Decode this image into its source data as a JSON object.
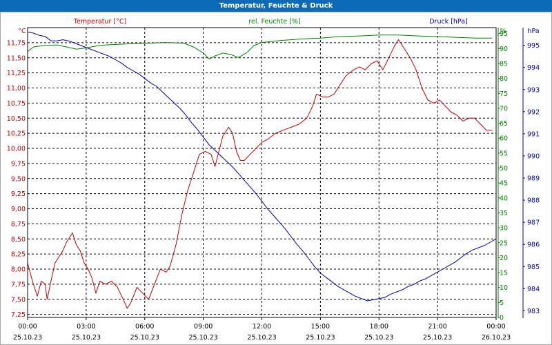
{
  "title": "Temperatur, Feuchte & Druck",
  "colors": {
    "temperature": "#c00000",
    "humidity": "#008000",
    "pressure": "#0000b0",
    "titlebar": "#0d6ab8"
  },
  "chart_data": {
    "type": "line",
    "legend": {
      "temperature": "Temperatur [°C]",
      "humidity": "rel. Feuchte [%]",
      "pressure": "Druck [hPa]"
    },
    "axes": {
      "left": {
        "unit": "°C",
        "ticks": [
          "11,75",
          "11,50",
          "11,25",
          "11,00",
          "10,75",
          "10,50",
          "10,25",
          "10,00",
          "9,75",
          "9,50",
          "9,25",
          "9,00",
          "8,75",
          "8,50",
          "8,25",
          "8,00",
          "7,75",
          "7,50",
          "7,25"
        ],
        "range": [
          7.2,
          12.0
        ]
      },
      "middle": {
        "unit": "%",
        "ticks": [
          "95",
          "90",
          "85",
          "80",
          "75",
          "70",
          "65",
          "60",
          "55",
          "50",
          "45",
          "40",
          "35",
          "30",
          "25",
          "20",
          "15",
          "10",
          "5",
          "0"
        ],
        "range": [
          0,
          97
        ]
      },
      "right": {
        "unit": "hPa",
        "ticks": [
          "995",
          "994",
          "993",
          "992",
          "991",
          "990",
          "989",
          "988",
          "987",
          "986",
          "985",
          "984",
          "983"
        ],
        "range": [
          982.7,
          995.8
        ]
      }
    },
    "x_ticks": [
      {
        "time": "00:00",
        "date": "25.10.23"
      },
      {
        "time": "03:00",
        "date": "25.10.23"
      },
      {
        "time": "06:00",
        "date": "25.10.23"
      },
      {
        "time": "09:00",
        "date": "25.10.23"
      },
      {
        "time": "12:00",
        "date": "25.10.23"
      },
      {
        "time": "15:00",
        "date": "25.10.23"
      },
      {
        "time": "18:00",
        "date": "25.10.23"
      },
      {
        "time": "21:00",
        "date": "25.10.23"
      },
      {
        "time": "00:00",
        "date": "26.10.23"
      }
    ],
    "x_range_hours": [
      0,
      24
    ],
    "series": [
      {
        "name": "Temperatur",
        "axis": "left",
        "color": "#c00000",
        "points": [
          [
            0,
            8.1
          ],
          [
            0.25,
            7.8
          ],
          [
            0.5,
            7.55
          ],
          [
            0.7,
            7.8
          ],
          [
            0.9,
            7.75
          ],
          [
            1.0,
            7.5
          ],
          [
            1.2,
            7.8
          ],
          [
            1.4,
            8.1
          ],
          [
            1.6,
            8.2
          ],
          [
            1.8,
            8.3
          ],
          [
            2.0,
            8.45
          ],
          [
            2.3,
            8.6
          ],
          [
            2.5,
            8.4
          ],
          [
            2.7,
            8.3
          ],
          [
            2.9,
            8.1
          ],
          [
            3.1,
            8.0
          ],
          [
            3.3,
            7.85
          ],
          [
            3.5,
            7.6
          ],
          [
            3.7,
            7.8
          ],
          [
            4.0,
            7.75
          ],
          [
            4.3,
            7.8
          ],
          [
            4.6,
            7.7
          ],
          [
            4.9,
            7.5
          ],
          [
            5.1,
            7.35
          ],
          [
            5.3,
            7.45
          ],
          [
            5.6,
            7.7
          ],
          [
            5.9,
            7.6
          ],
          [
            6.2,
            7.5
          ],
          [
            6.5,
            7.75
          ],
          [
            6.8,
            8.0
          ],
          [
            7.1,
            7.95
          ],
          [
            7.3,
            8.05
          ],
          [
            7.6,
            8.4
          ],
          [
            7.9,
            8.9
          ],
          [
            8.2,
            9.3
          ],
          [
            8.5,
            9.6
          ],
          [
            8.8,
            9.9
          ],
          [
            9.1,
            9.95
          ],
          [
            9.4,
            9.9
          ],
          [
            9.6,
            9.7
          ],
          [
            9.8,
            9.95
          ],
          [
            10.0,
            10.2
          ],
          [
            10.3,
            10.35
          ],
          [
            10.5,
            10.25
          ],
          [
            10.7,
            9.95
          ],
          [
            10.9,
            9.8
          ],
          [
            11.1,
            9.8
          ],
          [
            11.4,
            9.9
          ],
          [
            11.7,
            10.0
          ],
          [
            12.0,
            10.1
          ],
          [
            12.3,
            10.15
          ],
          [
            12.7,
            10.25
          ],
          [
            13.1,
            10.3
          ],
          [
            13.5,
            10.35
          ],
          [
            13.9,
            10.4
          ],
          [
            14.3,
            10.5
          ],
          [
            14.6,
            10.7
          ],
          [
            14.8,
            10.9
          ],
          [
            15.1,
            10.85
          ],
          [
            15.4,
            10.85
          ],
          [
            15.7,
            10.9
          ],
          [
            16.0,
            11.05
          ],
          [
            16.3,
            11.2
          ],
          [
            16.7,
            11.3
          ],
          [
            17.0,
            11.35
          ],
          [
            17.3,
            11.3
          ],
          [
            17.6,
            11.4
          ],
          [
            17.9,
            11.45
          ],
          [
            18.2,
            11.3
          ],
          [
            18.5,
            11.5
          ],
          [
            18.8,
            11.7
          ],
          [
            19.0,
            11.8
          ],
          [
            19.3,
            11.65
          ],
          [
            19.6,
            11.5
          ],
          [
            19.9,
            11.3
          ],
          [
            20.2,
            11.0
          ],
          [
            20.5,
            10.8
          ],
          [
            20.8,
            10.75
          ],
          [
            21.1,
            10.8
          ],
          [
            21.4,
            10.7
          ],
          [
            21.7,
            10.6
          ],
          [
            22.0,
            10.55
          ],
          [
            22.3,
            10.45
          ],
          [
            22.6,
            10.5
          ],
          [
            22.9,
            10.5
          ],
          [
            23.2,
            10.4
          ],
          [
            23.5,
            10.3
          ],
          [
            23.8,
            10.3
          ]
        ]
      },
      {
        "name": "rel. Feuchte",
        "axis": "middle",
        "color": "#008000",
        "points": [
          [
            0,
            89
          ],
          [
            0.3,
            90.5
          ],
          [
            0.8,
            91
          ],
          [
            1.5,
            91.2
          ],
          [
            2.0,
            90.5
          ],
          [
            2.5,
            89.8
          ],
          [
            3.0,
            90.2
          ],
          [
            3.5,
            90.8
          ],
          [
            4.0,
            91.2
          ],
          [
            5.0,
            91.5
          ],
          [
            6.0,
            91.7
          ],
          [
            7.0,
            92
          ],
          [
            8.0,
            91.8
          ],
          [
            8.5,
            90.5
          ],
          [
            9.0,
            88.5
          ],
          [
            9.3,
            86.5
          ],
          [
            9.6,
            87.5
          ],
          [
            10.0,
            88.5
          ],
          [
            10.4,
            88
          ],
          [
            10.8,
            87
          ],
          [
            11.2,
            88.5
          ],
          [
            11.6,
            91
          ],
          [
            12.0,
            92
          ],
          [
            13.0,
            92.7
          ],
          [
            14.0,
            93.2
          ],
          [
            15.0,
            93.5
          ],
          [
            16.0,
            94
          ],
          [
            17.0,
            94.2
          ],
          [
            18.0,
            94.5
          ],
          [
            19.0,
            94.5
          ],
          [
            20.0,
            94.2
          ],
          [
            21.0,
            94
          ],
          [
            22.0,
            93.7
          ],
          [
            23.0,
            93.5
          ],
          [
            23.8,
            93.5
          ]
        ]
      },
      {
        "name": "Druck",
        "axis": "right",
        "color": "#0000b0",
        "points": [
          [
            0,
            995.6
          ],
          [
            0.3,
            995.55
          ],
          [
            0.6,
            995.45
          ],
          [
            0.9,
            995.4
          ],
          [
            1.2,
            995.2
          ],
          [
            1.5,
            995.2
          ],
          [
            1.8,
            995.25
          ],
          [
            2.1,
            995.2
          ],
          [
            2.4,
            995.1
          ],
          [
            2.7,
            995.0
          ],
          [
            3.0,
            994.9
          ],
          [
            3.3,
            994.8
          ],
          [
            3.6,
            994.7
          ],
          [
            3.9,
            994.6
          ],
          [
            4.2,
            994.5
          ],
          [
            4.5,
            994.35
          ],
          [
            4.8,
            994.2
          ],
          [
            5.1,
            994.0
          ],
          [
            5.4,
            993.85
          ],
          [
            5.7,
            993.7
          ],
          [
            6.0,
            993.5
          ],
          [
            6.3,
            993.3
          ],
          [
            6.6,
            993.15
          ],
          [
            6.9,
            992.9
          ],
          [
            7.2,
            992.65
          ],
          [
            7.5,
            992.4
          ],
          [
            7.8,
            992.15
          ],
          [
            8.1,
            991.85
          ],
          [
            8.4,
            991.5
          ],
          [
            8.7,
            991.2
          ],
          [
            9.0,
            990.85
          ],
          [
            9.3,
            990.5
          ],
          [
            9.6,
            990.25
          ],
          [
            9.9,
            990.0
          ],
          [
            10.2,
            989.75
          ],
          [
            10.5,
            989.5
          ],
          [
            10.8,
            989.2
          ],
          [
            11.1,
            988.9
          ],
          [
            11.4,
            988.6
          ],
          [
            11.7,
            988.3
          ],
          [
            12.0,
            987.95
          ],
          [
            12.3,
            987.6
          ],
          [
            12.6,
            987.3
          ],
          [
            12.9,
            987.0
          ],
          [
            13.2,
            986.7
          ],
          [
            13.5,
            986.35
          ],
          [
            13.8,
            986.0
          ],
          [
            14.1,
            985.7
          ],
          [
            14.4,
            985.35
          ],
          [
            14.7,
            985.0
          ],
          [
            15.0,
            984.7
          ],
          [
            15.3,
            984.5
          ],
          [
            15.6,
            984.3
          ],
          [
            15.9,
            984.1
          ],
          [
            16.2,
            983.95
          ],
          [
            16.5,
            983.8
          ],
          [
            16.8,
            983.65
          ],
          [
            17.1,
            983.55
          ],
          [
            17.4,
            983.45
          ],
          [
            17.7,
            983.5
          ],
          [
            18.0,
            983.55
          ],
          [
            18.3,
            983.6
          ],
          [
            18.6,
            983.75
          ],
          [
            18.9,
            983.85
          ],
          [
            19.2,
            983.95
          ],
          [
            19.5,
            984.1
          ],
          [
            19.8,
            984.2
          ],
          [
            20.1,
            984.35
          ],
          [
            20.4,
            984.45
          ],
          [
            20.7,
            984.6
          ],
          [
            21.0,
            984.75
          ],
          [
            21.3,
            984.9
          ],
          [
            21.6,
            985.05
          ],
          [
            21.9,
            985.2
          ],
          [
            22.2,
            985.4
          ],
          [
            22.5,
            985.6
          ],
          [
            22.8,
            985.75
          ],
          [
            23.1,
            985.85
          ],
          [
            23.4,
            985.95
          ],
          [
            23.7,
            986.1
          ],
          [
            24.0,
            986.25
          ]
        ]
      }
    ]
  }
}
